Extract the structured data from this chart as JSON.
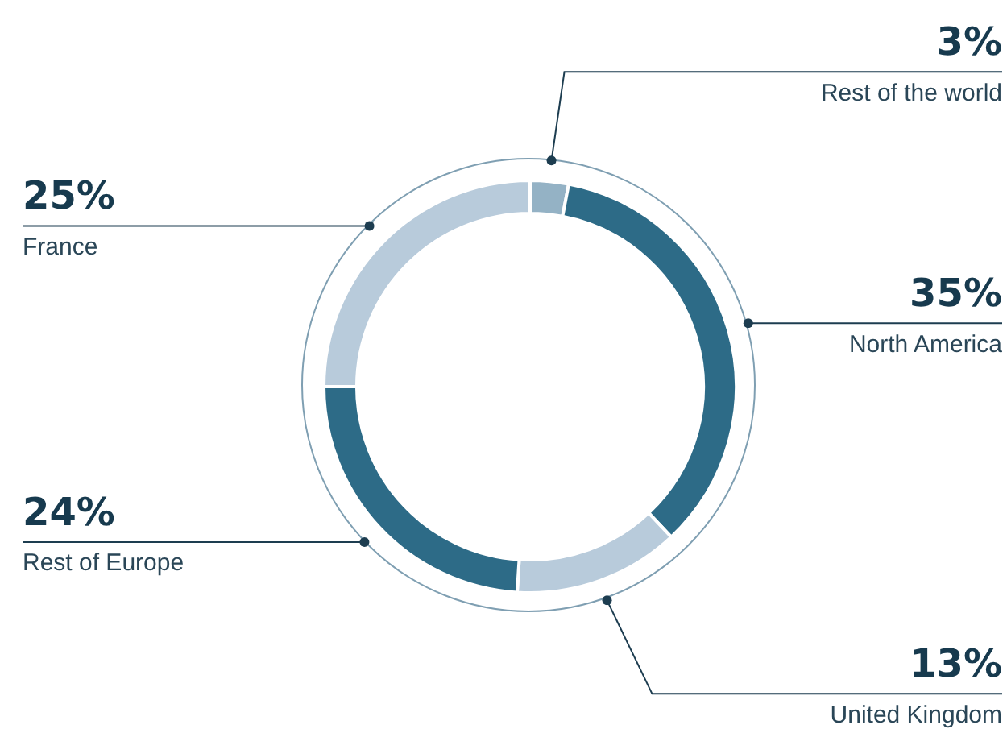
{
  "chart_data": {
    "type": "donut",
    "categories": [
      "Rest of the world",
      "North America",
      "United Kingdom",
      "Rest of Europe",
      "France"
    ],
    "values": [
      3,
      35,
      13,
      24,
      25
    ],
    "colors": [
      "#94b2c5",
      "#2d6b87",
      "#b8cbdb",
      "#2d6b87",
      "#b8cbdb"
    ],
    "value_labels": [
      "3%",
      "35%",
      "13%",
      "24%",
      "25%"
    ],
    "legend": false
  }
}
